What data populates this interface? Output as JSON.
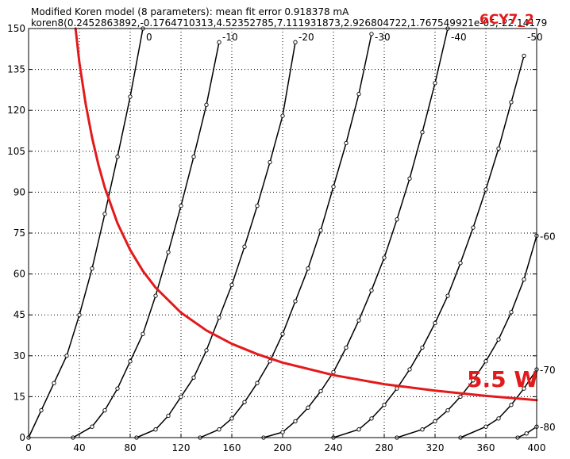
{
  "header": {
    "line1": "Modified Koren model (8 parameters): mean fit error 0.918378 mA",
    "line2": "koren8(0.2452863892,-0.1764710313,4.52352785,7.111931873,2.926804722,1.767549921e-05,-22.14179",
    "tube": "6CY7_2"
  },
  "colors": {
    "curve": "#000000",
    "dissipation": "#e31a1c",
    "grid": "#000000"
  },
  "chart_data": {
    "type": "line",
    "title": "Modified Koren model (8 parameters): mean fit error 0.918378 mA",
    "xlabel": "",
    "ylabel": "",
    "xlim": [
      0,
      400
    ],
    "ylim": [
      0,
      150
    ],
    "x_ticks": [
      "0",
      "40",
      "80",
      "120",
      "160",
      "200",
      "240",
      "280",
      "320",
      "360",
      "400"
    ],
    "y_ticks": [
      "0",
      "15",
      "30",
      "45",
      "60",
      "75",
      "90",
      "105",
      "120",
      "135",
      "150"
    ],
    "grid": true,
    "series": [
      {
        "name": "0",
        "label_pos": "top",
        "x": [
          0,
          10,
          20,
          30,
          40,
          50,
          60,
          70,
          80,
          90
        ],
        "y": [
          0,
          10,
          20,
          30,
          45,
          62,
          82,
          103,
          125,
          150
        ]
      },
      {
        "name": "-10",
        "label_pos": "top",
        "x": [
          35,
          50,
          60,
          70,
          80,
          90,
          100,
          110,
          120,
          130,
          140,
          150
        ],
        "y": [
          0,
          4,
          10,
          18,
          28,
          38,
          52,
          68,
          85,
          103,
          122,
          145
        ]
      },
      {
        "name": "-20",
        "label_pos": "top",
        "x": [
          85,
          100,
          110,
          120,
          130,
          140,
          150,
          160,
          170,
          180,
          190,
          200,
          210
        ],
        "y": [
          0,
          3,
          8,
          15,
          22,
          32,
          44,
          56,
          70,
          85,
          101,
          118,
          145
        ]
      },
      {
        "name": "-30",
        "label_pos": "top",
        "x": [
          135,
          150,
          160,
          170,
          180,
          190,
          200,
          210,
          220,
          230,
          240,
          250,
          260,
          270
        ],
        "y": [
          0,
          3,
          7,
          13,
          20,
          28,
          38,
          50,
          62,
          76,
          92,
          108,
          126,
          148
        ]
      },
      {
        "name": "-40",
        "label_pos": "top",
        "x": [
          185,
          200,
          210,
          220,
          230,
          240,
          250,
          260,
          270,
          280,
          290,
          300,
          310,
          320,
          330
        ],
        "y": [
          0,
          2,
          6,
          11,
          17,
          24,
          33,
          43,
          54,
          66,
          80,
          95,
          112,
          130,
          150
        ]
      },
      {
        "name": "-50",
        "label_pos": "top",
        "x": [
          240,
          260,
          270,
          280,
          290,
          300,
          310,
          320,
          330,
          340,
          350,
          360,
          370,
          380,
          390
        ],
        "y": [
          0,
          3,
          7,
          12,
          18,
          25,
          33,
          42,
          52,
          64,
          77,
          91,
          106,
          123,
          140
        ]
      },
      {
        "name": "-60",
        "label_pos": "right",
        "x": [
          290,
          310,
          320,
          330,
          340,
          350,
          360,
          370,
          380,
          390,
          400
        ],
        "y": [
          0,
          3,
          6,
          10,
          15,
          21,
          28,
          36,
          46,
          58,
          74
        ]
      },
      {
        "name": "-70",
        "label_pos": "right",
        "x": [
          340,
          360,
          370,
          380,
          390,
          400
        ],
        "y": [
          0,
          4,
          7,
          12,
          18,
          25
        ]
      },
      {
        "name": "-80",
        "label_pos": "right",
        "x": [
          385,
          392,
          400
        ],
        "y": [
          0,
          1.5,
          4
        ]
      },
      {
        "name": "5.5 W",
        "style": "dissipation",
        "label_pos": "end",
        "x": [
          37,
          40,
          45,
          50,
          55,
          60,
          70,
          80,
          90,
          100,
          120,
          140,
          160,
          180,
          200,
          240,
          280,
          320,
          360,
          400
        ],
        "y": [
          150,
          137.5,
          122.2,
          110,
          100,
          91.7,
          78.6,
          68.8,
          61.1,
          55,
          45.8,
          39.3,
          34.4,
          30.6,
          27.5,
          22.9,
          19.6,
          17.2,
          15.3,
          13.75
        ]
      }
    ]
  }
}
